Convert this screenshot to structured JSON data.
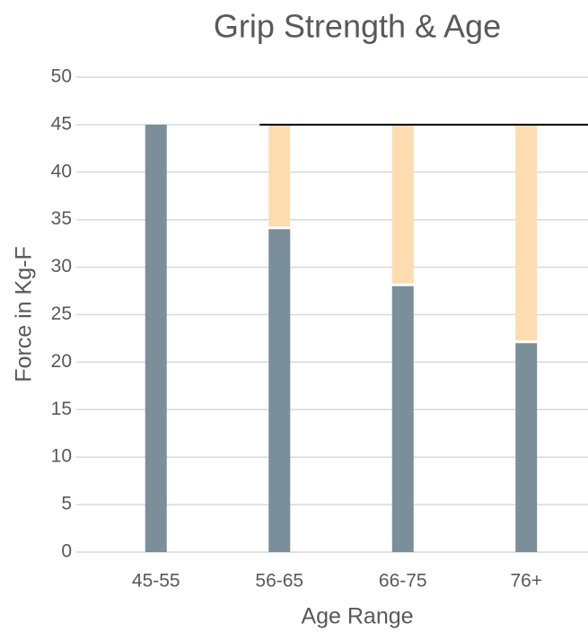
{
  "chart_data": {
    "type": "bar",
    "stacked": true,
    "title": "Grip Strength & Age",
    "x_label": "Age Range",
    "y_label": "Force in Kg-F",
    "categories": [
      "45-55",
      "56-65",
      "66-75",
      "76+"
    ],
    "series": [
      {
        "color": "#7a8f9a",
        "values": [
          45,
          34,
          28,
          22
        ]
      },
      {
        "color": "#fddcb0",
        "values": [
          0,
          11,
          17,
          23
        ]
      }
    ],
    "reference_line": {
      "value": 45,
      "color": "#000000"
    },
    "ylim": [
      0,
      50
    ],
    "yticks": [
      0,
      5,
      10,
      15,
      20,
      25,
      30,
      35,
      40,
      45,
      50
    ],
    "grid": true
  }
}
